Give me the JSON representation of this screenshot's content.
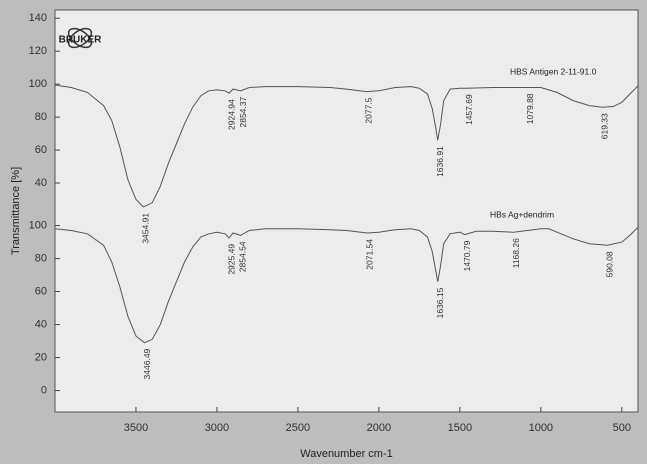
{
  "logo": "BRUKER",
  "chart_data": [
    {
      "type": "line",
      "ylabel": "Transmittance [%]",
      "xlim": [
        4000,
        400
      ],
      "ylim": [
        20,
        145
      ],
      "yticks": [
        40,
        60,
        80,
        100,
        120,
        140
      ],
      "x": [
        4000,
        3900,
        3800,
        3700,
        3650,
        3600,
        3550,
        3500,
        3454.91,
        3400,
        3350,
        3300,
        3250,
        3200,
        3150,
        3100,
        3050,
        3000,
        2950,
        2924.94,
        2900,
        2854.37,
        2800,
        2700,
        2500,
        2300,
        2200,
        2077.5,
        2000,
        1900,
        1800,
        1750,
        1700,
        1670,
        1650,
        1636.91,
        1620,
        1600,
        1560,
        1500,
        1457.69,
        1300,
        1079.88,
        1000,
        900,
        800,
        700,
        619.33,
        550,
        500,
        450,
        400
      ],
      "series": [
        {
          "name": "HBS Antigen 2-11-91.0",
          "color": "#555555",
          "values": [
            99.5,
            98,
            95,
            87,
            78,
            62,
            42,
            30,
            25.5,
            28,
            38,
            52,
            64,
            76,
            86,
            93,
            96,
            96.5,
            96,
            94.5,
            97,
            96,
            98,
            98.5,
            98.5,
            98,
            97,
            95.5,
            96,
            98,
            98.5,
            97.5,
            94,
            85,
            74,
            66,
            75,
            90,
            97,
            97.5,
            97.5,
            98,
            98,
            98,
            95,
            90,
            87,
            86,
            86.5,
            89,
            94,
            99
          ]
        }
      ],
      "peaks": [
        3454.91,
        2924.94,
        2854.37,
        2077.5,
        1636.91,
        1457.69,
        1079.88,
        619.33
      ]
    },
    {
      "type": "line",
      "xlabel": "Wavenumber cm-1",
      "xlim": [
        4000,
        400
      ],
      "xticks": [
        3500,
        3000,
        2500,
        2000,
        1500,
        1000,
        500
      ],
      "ylim": [
        -13,
        107
      ],
      "yticks": [
        0,
        20,
        40,
        60,
        80,
        100
      ],
      "x": [
        4000,
        3900,
        3800,
        3700,
        3650,
        3600,
        3550,
        3500,
        3446.49,
        3400,
        3350,
        3300,
        3250,
        3200,
        3150,
        3100,
        3050,
        3000,
        2950,
        2925.49,
        2900,
        2854.54,
        2800,
        2700,
        2500,
        2300,
        2200,
        2071.54,
        2000,
        1900,
        1800,
        1750,
        1700,
        1670,
        1650,
        1636.15,
        1620,
        1600,
        1560,
        1500,
        1470.79,
        1400,
        1300,
        1168.26,
        1000,
        950,
        900,
        800,
        700,
        590.08,
        500,
        450,
        400
      ],
      "series": [
        {
          "name": "HBs Ag+dendrim",
          "color": "#555555",
          "values": [
            98,
            97,
            95,
            88,
            78,
            63,
            45,
            33,
            29,
            31,
            40,
            54,
            66,
            78,
            87,
            93,
            95,
            96,
            95,
            92.5,
            95.5,
            94,
            97,
            98,
            98,
            97.5,
            97,
            95.5,
            96,
            97.5,
            98,
            97,
            93,
            84,
            73,
            66,
            75,
            89,
            95,
            96,
            94.5,
            96.5,
            96.5,
            96,
            98,
            98,
            96,
            92,
            89,
            88,
            90,
            94,
            99
          ]
        }
      ],
      "peaks": [
        3446.49,
        2925.49,
        2854.54,
        2071.54,
        1636.15,
        1470.79,
        1168.26,
        590.08
      ]
    }
  ]
}
